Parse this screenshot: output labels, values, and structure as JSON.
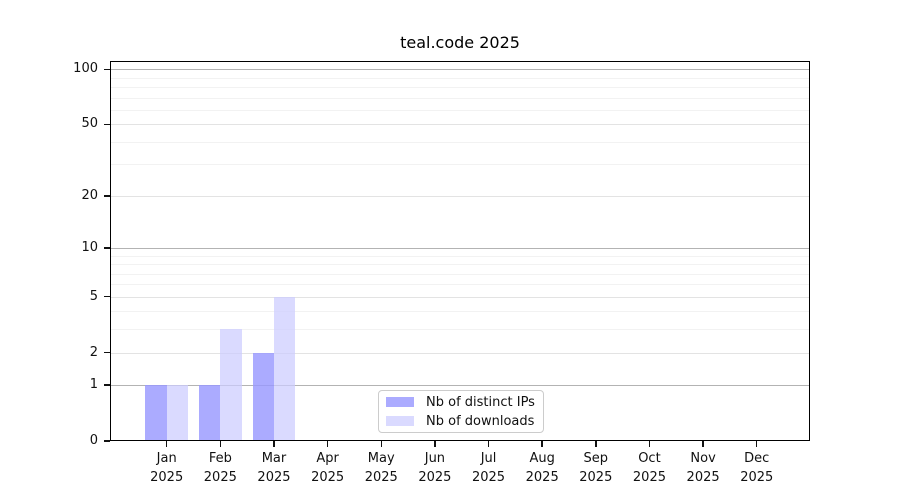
{
  "chart_data": {
    "type": "bar",
    "title": "teal.code 2025",
    "categories": [
      "Jan 2025",
      "Feb 2025",
      "Mar 2025",
      "Apr 2025",
      "May 2025",
      "Jun 2025",
      "Jul 2025",
      "Aug 2025",
      "Sep 2025",
      "Oct 2025",
      "Nov 2025",
      "Dec 2025"
    ],
    "series": [
      {
        "name": "Nb of distinct IPs",
        "color": "#9999ff",
        "alpha": 0.82,
        "values": [
          1,
          1,
          2,
          0,
          0,
          0,
          0,
          0,
          0,
          0,
          0,
          0
        ]
      },
      {
        "name": "Nb of downloads",
        "color": "#ccccff",
        "alpha": 0.72,
        "values": [
          1,
          3,
          5,
          0,
          0,
          0,
          0,
          0,
          0,
          0,
          0,
          0
        ]
      }
    ],
    "xlabel": "",
    "ylabel": "",
    "yscale": "log1p",
    "ylim": [
      0,
      111
    ],
    "y_ticks": [
      0,
      1,
      2,
      5,
      10,
      20,
      50,
      100
    ],
    "y_minor_gridlines": [
      3,
      4,
      6,
      7,
      8,
      9,
      30,
      40,
      60,
      70,
      80,
      90
    ],
    "grid": true,
    "legend_position": "lower center"
  },
  "style": {
    "background": "#ffffff",
    "axis_color": "#000000",
    "text_color": "#111111",
    "grid_decade": "#b3b3b3",
    "grid_major": "#e3e3e3",
    "grid_minor": "#f2f2f2",
    "legend_border": "#cccccc"
  }
}
